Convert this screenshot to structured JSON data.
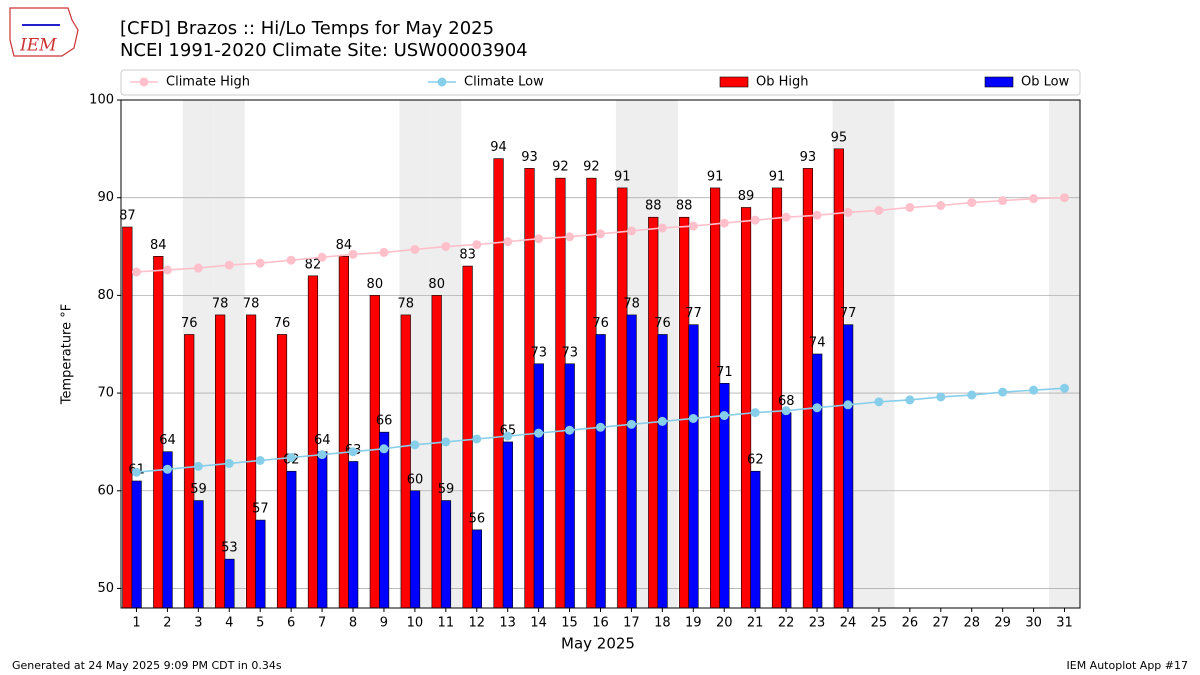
{
  "chart_data": {
    "type": "bar",
    "logo": "IEM",
    "title": "[CFD] Brazos :: Hi/Lo Temps for May 2025",
    "subtitle": "NCEI 1991-2020 Climate Site: USW00003904",
    "x_label": "May 2025",
    "y_label": "Temperature °F",
    "x": [
      1,
      2,
      3,
      4,
      5,
      6,
      7,
      8,
      9,
      10,
      11,
      12,
      13,
      14,
      15,
      16,
      17,
      18,
      19,
      20,
      21,
      22,
      23,
      24,
      25,
      26,
      27,
      28,
      29,
      30,
      31
    ],
    "xlim": [
      0.5,
      31.5
    ],
    "xticks": [
      1,
      2,
      3,
      4,
      5,
      6,
      7,
      8,
      9,
      10,
      11,
      12,
      13,
      14,
      15,
      16,
      17,
      18,
      19,
      20,
      21,
      22,
      23,
      24,
      25,
      26,
      27,
      28,
      29,
      30,
      31
    ],
    "ylim": [
      48,
      100
    ],
    "yticks": [
      50,
      60,
      70,
      80,
      90,
      100
    ],
    "grid": true,
    "shaded_days": [
      3,
      4,
      10,
      11,
      17,
      18,
      24,
      25,
      31
    ],
    "series": [
      {
        "name": "Climate High",
        "type": "line",
        "color": "#ffc0cb",
        "values": [
          82.4,
          82.6,
          82.8,
          83.1,
          83.3,
          83.6,
          83.9,
          84.2,
          84.4,
          84.7,
          85.0,
          85.2,
          85.5,
          85.8,
          86.0,
          86.3,
          86.6,
          86.9,
          87.1,
          87.4,
          87.7,
          88.0,
          88.2,
          88.5,
          88.7,
          89.0,
          89.2,
          89.5,
          89.7,
          89.9,
          90.0
        ]
      },
      {
        "name": "Climate Low",
        "type": "line",
        "color": "#87ceeb",
        "values": [
          61.9,
          62.2,
          62.5,
          62.8,
          63.1,
          63.4,
          63.7,
          64.0,
          64.3,
          64.7,
          65.0,
          65.3,
          65.6,
          65.9,
          66.2,
          66.5,
          66.8,
          67.1,
          67.4,
          67.7,
          68.0,
          68.2,
          68.5,
          68.8,
          69.1,
          69.3,
          69.6,
          69.8,
          70.1,
          70.3,
          70.5
        ]
      },
      {
        "name": "Ob High",
        "type": "bar",
        "color": "#ff0000",
        "values": [
          87,
          84,
          76,
          78,
          78,
          76,
          82,
          84,
          80,
          78,
          80,
          83,
          94,
          93,
          92,
          92,
          91,
          88,
          88,
          91,
          89,
          91,
          93,
          95,
          null,
          null,
          null,
          null,
          null,
          null,
          null
        ]
      },
      {
        "name": "Ob Low",
        "type": "bar",
        "color": "#0000ff",
        "values": [
          61,
          64,
          59,
          53,
          57,
          62,
          64,
          63,
          66,
          60,
          59,
          56,
          65,
          73,
          73,
          76,
          78,
          76,
          77,
          71,
          62,
          68,
          74,
          77,
          null,
          null,
          null,
          null,
          null,
          null,
          null
        ]
      }
    ],
    "footer_left": "Generated at 24 May 2025 9:09 PM CDT in 0.34s",
    "footer_right": "IEM Autoplot App #17"
  }
}
